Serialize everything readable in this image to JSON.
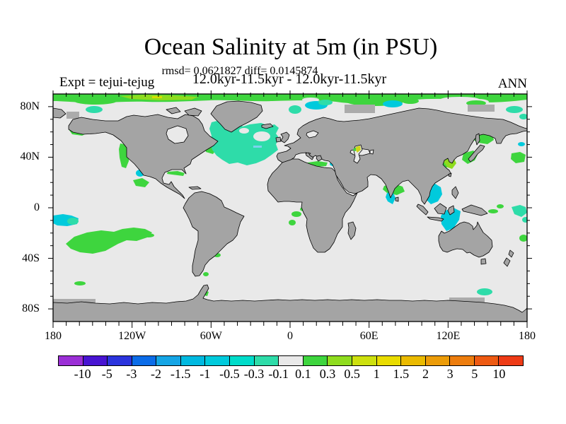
{
  "header": {
    "title": "Ocean Salinity at 5m (in PSU)",
    "stats_line": "rmsd= 0.0621827 diff= 0.0145874",
    "period_line": "12.0kyr-11.5kyr - 12.0kyr-11.5kyr",
    "experiment_label": "Expt = tejui-tejug",
    "season_label": "ANN"
  },
  "map": {
    "lat_ticks": [
      {
        "label": "80N",
        "lat": 80
      },
      {
        "label": "40N",
        "lat": 40
      },
      {
        "label": "0",
        "lat": 0
      },
      {
        "label": "40S",
        "lat": -40
      },
      {
        "label": "80S",
        "lat": -80
      }
    ],
    "lon_ticks": [
      {
        "label": "180",
        "lon": -180
      },
      {
        "label": "120W",
        "lon": -120
      },
      {
        "label": "60W",
        "lon": -60
      },
      {
        "label": "0",
        "lon": 0
      },
      {
        "label": "60E",
        "lon": 60
      },
      {
        "label": "120E",
        "lon": 120
      },
      {
        "label": "180",
        "lon": 180
      }
    ],
    "minor_tick_step_deg": 10,
    "major_lon_step_deg": 60,
    "major_lat_step_deg": 40,
    "land_color": "#a4a4a4",
    "near_zero_ocean_color": "#e9e9e9"
  },
  "colorbar": {
    "boundary_labels": [
      "-10",
      "-5",
      "-3",
      "-2",
      "-1.5",
      "-1",
      "-0.5",
      "-0.3",
      "-0.1",
      "0.1",
      "0.3",
      "0.5",
      "1",
      "1.5",
      "2",
      "3",
      "5",
      "10"
    ],
    "colors": [
      "#9b2fd6",
      "#4814d2",
      "#2b34dd",
      "#0b6ce8",
      "#15a5e5",
      "#00b9e0",
      "#00cadc",
      "#00dcca",
      "#2edca9",
      "#e9e9e9",
      "#3ed53e",
      "#8fdc1e",
      "#cde00e",
      "#e9dc00",
      "#eaba00",
      "#ec9c08",
      "#ed7d0e",
      "#ee5a12",
      "#ee3b16"
    ]
  },
  "chart_data": {
    "type": "heatmap",
    "title": "Ocean Salinity at 5m (in PSU)",
    "subtitle": "12.0kyr-11.5kyr - 12.0kyr-11.5kyr",
    "stats": {
      "rmsd": 0.0621827,
      "diff": 0.0145874
    },
    "experiment": "tejui-tejug",
    "season": "ANN",
    "units": "PSU",
    "projection": "equirectangular",
    "lon_range": [
      -180,
      180
    ],
    "lat_range": [
      -90,
      90
    ],
    "levels": [
      -10,
      -5,
      -3,
      -2,
      -1.5,
      -1,
      -0.5,
      -0.3,
      -0.1,
      0.1,
      0.3,
      0.5,
      1,
      1.5,
      2,
      3,
      5,
      10
    ],
    "palette": [
      "#9b2fd6",
      "#4814d2",
      "#2b34dd",
      "#0b6ce8",
      "#15a5e5",
      "#00b9e0",
      "#00cadc",
      "#00dcca",
      "#2edca9",
      "#e9e9e9",
      "#3ed53e",
      "#8fdc1e",
      "#cde00e",
      "#e9dc00",
      "#eaba00",
      "#ec9c08",
      "#ed7d0e",
      "#ee5a12",
      "#ee3b16"
    ],
    "legend_position": "bottom",
    "grid": false,
    "notable_regions": [
      {
        "region": "Arctic cap, all longitudes near 85N-90N",
        "value_bin": "0.1 to 0.3"
      },
      {
        "region": "Arctic cap 130W-60W",
        "value_bin": "0.3 to 0.5"
      },
      {
        "region": "North Atlantic / Labrador Sea 50N-70N",
        "value_bin": "-0.3 to -0.1"
      },
      {
        "region": "Barents / Kara seas patches",
        "value_bin": "-0.5 to -0.1"
      },
      {
        "region": "South Pacific 20S-35S, 130W-170W",
        "value_bin": "0.1 to 0.3"
      },
      {
        "region": "North Caspian Sea",
        "value_bin": "0.5 to 1.5"
      },
      {
        "region": "Okhotsk / Japan / East China coastal seas",
        "value_bin": "0.1 to 0.5"
      },
      {
        "region": "Bay of Bengal and South China Sea",
        "value_bin": "-0.5 to 0.3"
      },
      {
        "region": "Gulf of Alaska, Baja, Gulf of Mexico coastal patches",
        "value_bin": "0.1 to 0.3"
      },
      {
        "region": "most of the global ocean",
        "value_bin": "-0.1 to 0.1"
      }
    ]
  }
}
